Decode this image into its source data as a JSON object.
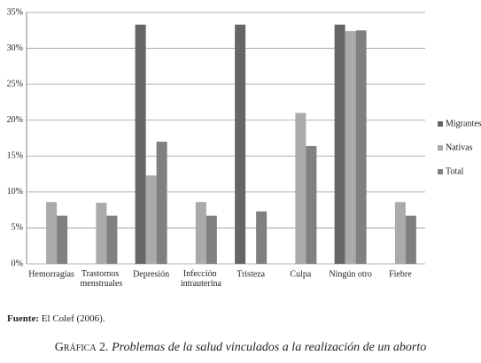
{
  "chart_data": {
    "type": "bar",
    "categories": [
      "Hemorragias",
      "Trastornos menstruales",
      "Depresión",
      "Infección intrauterina",
      "Tristeza",
      "Culpa",
      "Ningún otro",
      "Fiebre"
    ],
    "series": [
      {
        "name": "Migrantes",
        "color": "#666666",
        "values": [
          0,
          0,
          33.3,
          0,
          33.3,
          0,
          33.3,
          0
        ]
      },
      {
        "name": "Nativas",
        "color": "#aaaaaa",
        "values": [
          8.6,
          8.5,
          12.3,
          8.6,
          0,
          21,
          32.4,
          8.6
        ]
      },
      {
        "name": "Total",
        "color": "#808080",
        "values": [
          6.7,
          6.7,
          17,
          6.7,
          7.3,
          16.4,
          32.5,
          6.7
        ]
      }
    ],
    "ylim": [
      0,
      35
    ],
    "yticks": [
      {
        "value": 0,
        "label": "0%"
      },
      {
        "value": 5,
        "label": "5%"
      },
      {
        "value": 10,
        "label": "10%"
      },
      {
        "value": 15,
        "label": "15%"
      },
      {
        "value": 20,
        "label": "20%"
      },
      {
        "value": 25,
        "label": "25%"
      },
      {
        "value": 30,
        "label": "30%"
      },
      {
        "value": 35,
        "label": "35%"
      }
    ],
    "grid": true,
    "legend": "right"
  },
  "source": {
    "label": "Fuente:",
    "text": "El Colef (2006)."
  },
  "caption": {
    "label": "Gráfica 2.",
    "text": "Problemas de la salud vinculados a la realización de un aborto"
  }
}
